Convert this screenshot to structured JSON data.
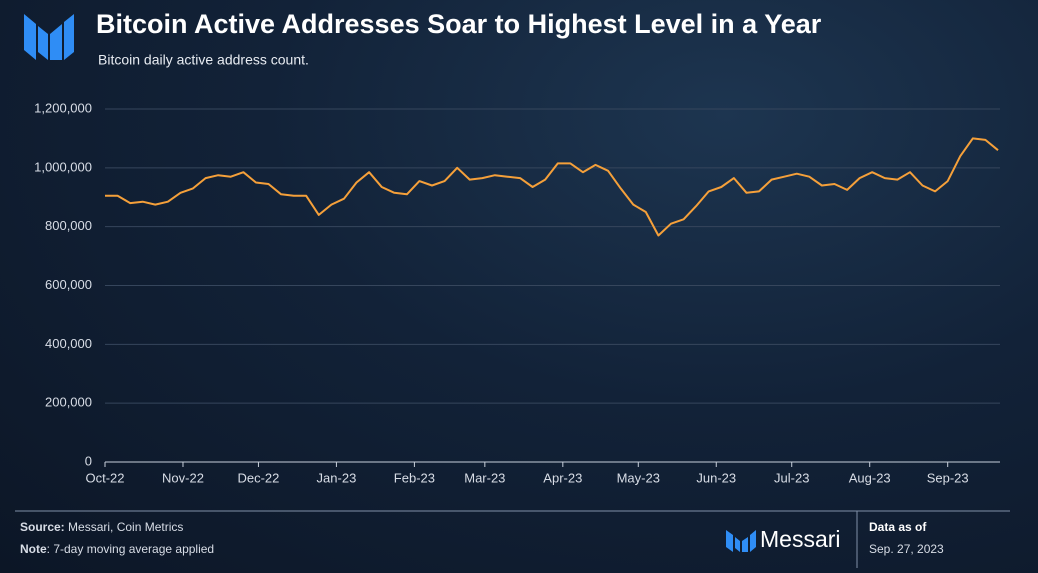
{
  "chart_data": {
    "type": "line",
    "title": "Bitcoin Active Addresses Soar to Highest Level in a Year",
    "subtitle": "Bitcoin daily active address count.",
    "xlim": [
      0,
      71
    ],
    "xticks": [
      {
        "value": 0,
        "label": "Oct-22"
      },
      {
        "value": 6.2,
        "label": "Nov-22"
      },
      {
        "value": 12.2,
        "label": "Dec-22"
      },
      {
        "value": 18.4,
        "label": "Jan-23"
      },
      {
        "value": 24.6,
        "label": "Feb-23"
      },
      {
        "value": 30.2,
        "label": "Mar-23"
      },
      {
        "value": 36.4,
        "label": "Apr-23"
      },
      {
        "value": 42.4,
        "label": "May-23"
      },
      {
        "value": 48.6,
        "label": "Jun-23"
      },
      {
        "value": 54.6,
        "label": "Jul-23"
      },
      {
        "value": 60.8,
        "label": "Aug-23"
      },
      {
        "value": 67,
        "label": "Sep-23"
      }
    ],
    "ylim": [
      0,
      1200000
    ],
    "yticks": [
      0,
      {
        "value": 200000,
        "label": "200,000"
      },
      {
        "value": 400000,
        "label": "400,000"
      },
      {
        "value": 600000,
        "label": "600,000"
      },
      {
        "value": 800000,
        "label": "800,000"
      },
      {
        "value": 1000000,
        "label": "1,000,000"
      },
      {
        "value": 1200000,
        "label": "1,200,000"
      }
    ],
    "grid": true,
    "series": [
      {
        "color": "#f5a03a",
        "values": [
          905000,
          905000,
          880000,
          885000,
          875000,
          885000,
          915000,
          930000,
          965000,
          975000,
          970000,
          985000,
          950000,
          945000,
          910000,
          905000,
          905000,
          840000,
          875000,
          895000,
          950000,
          985000,
          935000,
          915000,
          910000,
          955000,
          940000,
          955000,
          1000000,
          960000,
          965000,
          975000,
          970000,
          965000,
          935000,
          960000,
          1015000,
          1015000,
          985000,
          1010000,
          990000,
          930000,
          875000,
          850000,
          770000,
          810000,
          825000,
          870000,
          920000,
          935000,
          965000,
          915000,
          920000,
          960000,
          970000,
          980000,
          970000,
          940000,
          945000,
          925000,
          965000,
          985000,
          965000,
          960000,
          985000,
          940000,
          920000,
          955000,
          1040000,
          1100000,
          1095000,
          1060000
        ]
      }
    ]
  },
  "footer": {
    "source_label": "Source:",
    "source": "Messari, Coin Metrics",
    "note_label": "Note",
    "note": ": 7-day moving average applied",
    "brand": "Messari",
    "data_as_of_label": "Data as of",
    "data_as_of": "Sep. 27, 2023"
  }
}
